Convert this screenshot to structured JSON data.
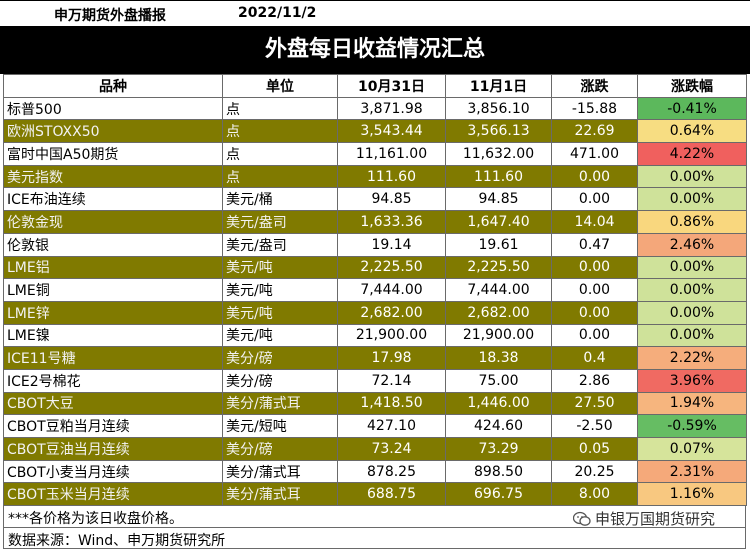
{
  "header": {
    "org": "申万期货外盘播报",
    "date": "2022/11/2",
    "title": "外盘每日收益情况汇总"
  },
  "table": {
    "columns": [
      "品种",
      "单位",
      "10月31日",
      "11月1日",
      "涨跌",
      "涨跌幅"
    ],
    "rows": [
      {
        "name": "标普500",
        "unit": "点",
        "d1": "3,871.98",
        "d2": "3,856.10",
        "chg": "-15.88",
        "pct": "-0.41%",
        "pct_color": "#5cb85c"
      },
      {
        "name": "欧洲STOXX50",
        "unit": "点",
        "d1": "3,543.44",
        "d2": "3,566.13",
        "chg": "22.69",
        "pct": "0.64%",
        "pct_color": "#f7dd82"
      },
      {
        "name": "富时中国A50期货",
        "unit": "点",
        "d1": "11,161.00",
        "d2": "11,632.00",
        "chg": "471.00",
        "pct": "4.22%",
        "pct_color": "#f0605e"
      },
      {
        "name": "美元指数",
        "unit": "点",
        "d1": "111.60",
        "d2": "111.60",
        "chg": "0.00",
        "pct": "0.00%",
        "pct_color": "#cfe29a"
      },
      {
        "name": "ICE布油连续",
        "unit": "美元/桶",
        "d1": "94.85",
        "d2": "94.85",
        "chg": "0.00",
        "pct": "0.00%",
        "pct_color": "#cfe29a"
      },
      {
        "name": "伦敦金现",
        "unit": "美元/盎司",
        "d1": "1,633.36",
        "d2": "1,647.40",
        "chg": "14.04",
        "pct": "0.86%",
        "pct_color": "#f9d77e"
      },
      {
        "name": "伦敦银",
        "unit": "美元/盎司",
        "d1": "19.14",
        "d2": "19.61",
        "chg": "0.47",
        "pct": "2.46%",
        "pct_color": "#f4a77a"
      },
      {
        "name": "LME铝",
        "unit": "美元/吨",
        "d1": "2,225.50",
        "d2": "2,225.50",
        "chg": "0.00",
        "pct": "0.00%",
        "pct_color": "#cfe29a"
      },
      {
        "name": "LME铜",
        "unit": "美元/吨",
        "d1": "7,444.00",
        "d2": "7,444.00",
        "chg": "0.00",
        "pct": "0.00%",
        "pct_color": "#cfe29a"
      },
      {
        "name": "LME锌",
        "unit": "美元/吨",
        "d1": "2,682.00",
        "d2": "2,682.00",
        "chg": "0.00",
        "pct": "0.00%",
        "pct_color": "#cfe29a"
      },
      {
        "name": "LME镍",
        "unit": "美元/吨",
        "d1": "21,900.00",
        "d2": "21,900.00",
        "chg": "0.00",
        "pct": "0.00%",
        "pct_color": "#cfe29a"
      },
      {
        "name": "ICE11号糖",
        "unit": "美分/磅",
        "d1": "17.98",
        "d2": "18.38",
        "chg": "0.4",
        "pct": "2.22%",
        "pct_color": "#f5ad7c"
      },
      {
        "name": "ICE2号棉花",
        "unit": "美分/磅",
        "d1": "72.14",
        "d2": "75.00",
        "chg": "2.86",
        "pct": "3.96%",
        "pct_color": "#f06a62"
      },
      {
        "name": "CBOT大豆",
        "unit": "美分/蒲式耳",
        "d1": "1,418.50",
        "d2": "1,446.00",
        "chg": "27.50",
        "pct": "1.94%",
        "pct_color": "#f6b57e"
      },
      {
        "name": "CBOT豆粕当月连续",
        "unit": "美元/短吨",
        "d1": "427.10",
        "d2": "424.60",
        "chg": "-2.50",
        "pct": "-0.59%",
        "pct_color": "#66bd63"
      },
      {
        "name": "CBOT豆油当月连续",
        "unit": "美分/磅",
        "d1": "73.24",
        "d2": "73.29",
        "chg": "0.05",
        "pct": "0.07%",
        "pct_color": "#d6e49b"
      },
      {
        "name": "CBOT小麦当月连续",
        "unit": "美分/蒲式耳",
        "d1": "878.25",
        "d2": "898.50",
        "chg": "20.25",
        "pct": "2.31%",
        "pct_color": "#f5a97a"
      },
      {
        "name": "CBOT玉米当月连续",
        "unit": "美分/蒲式耳",
        "d1": "688.75",
        "d2": "696.75",
        "chg": "8.00",
        "pct": "1.16%",
        "pct_color": "#f8c880"
      }
    ]
  },
  "footer": {
    "note": "***各价格为该日收盘价格。",
    "source": "数据来源：Wind、申万期货研究所",
    "watermark": "申银万国期货研究",
    "watermark_icon": "wechat-icon"
  },
  "colors": {
    "olive_row": "#807a00",
    "banner": "#000000"
  }
}
